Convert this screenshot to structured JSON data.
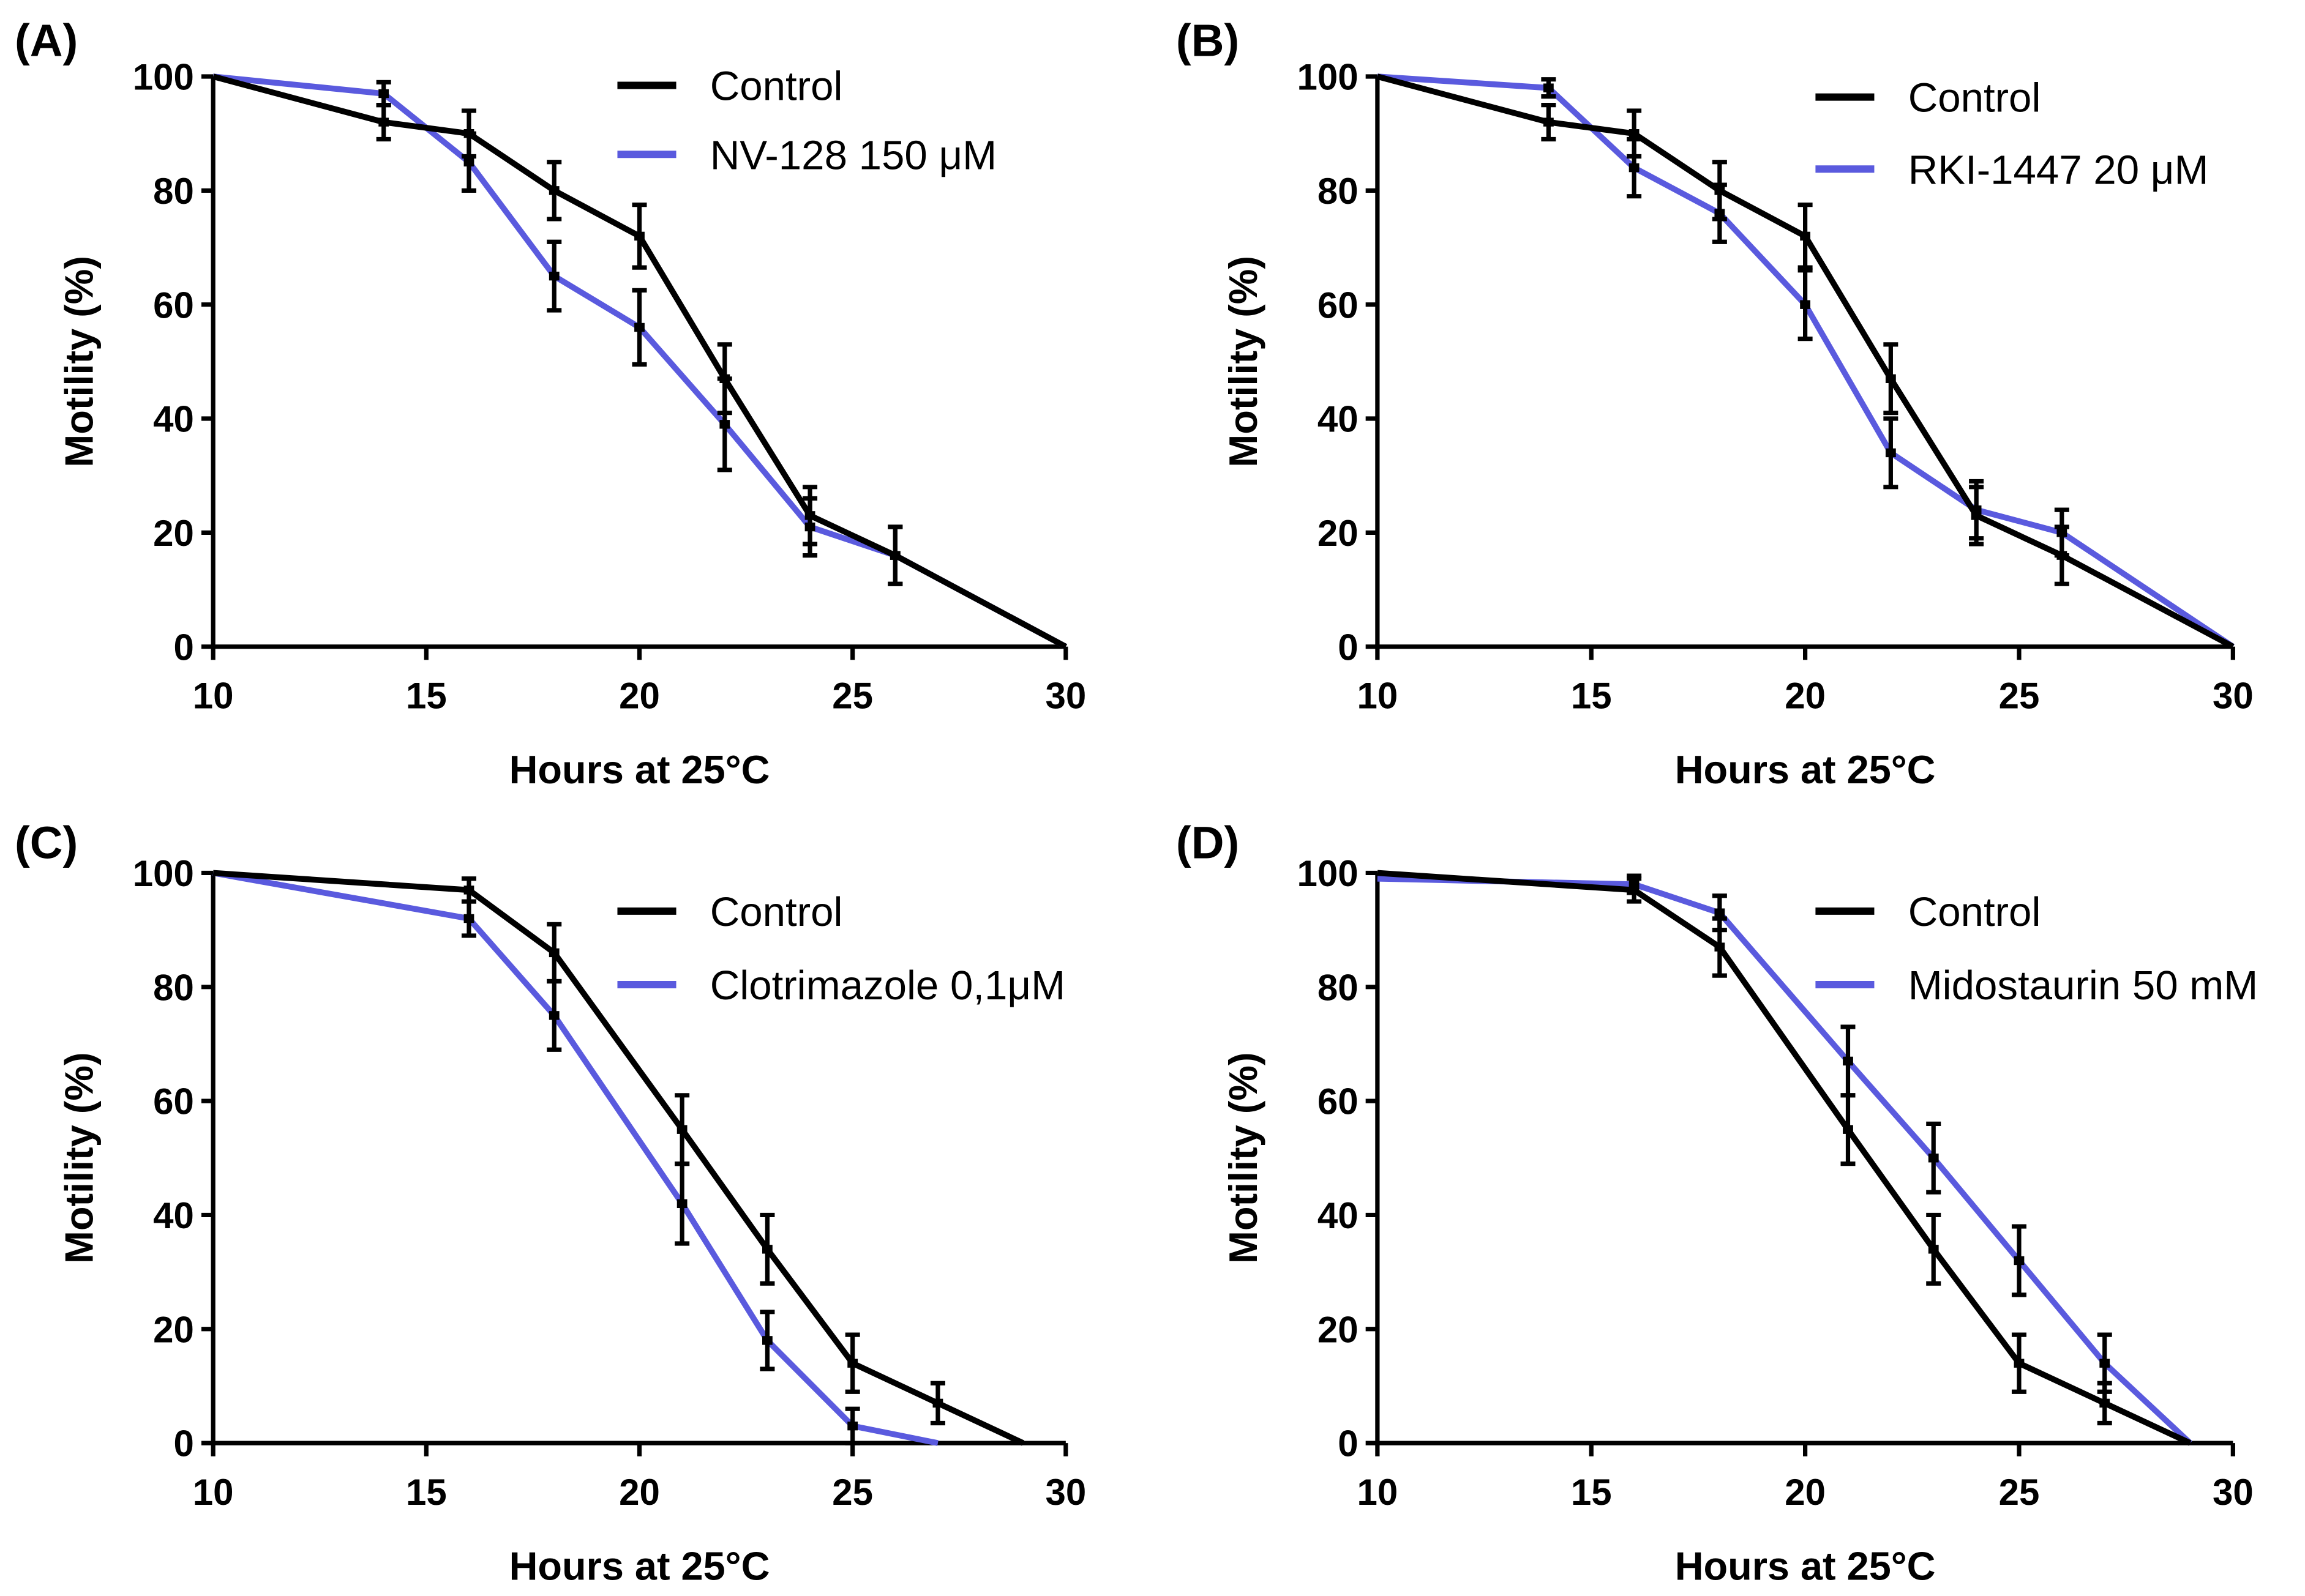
{
  "colors": {
    "control": "#000000",
    "treatment": "#5a5ade"
  },
  "chart_data": [
    {
      "panel": "(A)",
      "type": "line",
      "xlabel": "Hours at 25°C",
      "ylabel": "Motility (%)",
      "xlim": [
        10,
        30
      ],
      "ylim": [
        0,
        100
      ],
      "xticks": [
        "10",
        "15",
        "20",
        "25",
        "30"
      ],
      "yticks": [
        "0",
        "20",
        "40",
        "60",
        "80",
        "100"
      ],
      "legend_placement": "top-right",
      "series": [
        {
          "name": "Control",
          "x": [
            10,
            14,
            16,
            18,
            20,
            22,
            24,
            26,
            30
          ],
          "y": [
            100,
            92,
            90,
            80,
            72,
            47,
            23,
            16,
            0
          ],
          "err": [
            0,
            3,
            4,
            5,
            5.5,
            6,
            5,
            5,
            0
          ]
        },
        {
          "name": "NV-128 150 μM",
          "x": [
            10,
            14,
            16,
            18,
            20,
            22,
            24,
            26,
            30
          ],
          "y": [
            100,
            97,
            85,
            65,
            56,
            39,
            21,
            16,
            0
          ],
          "err": [
            0,
            2,
            5,
            6,
            6.5,
            8,
            5,
            5,
            0
          ]
        }
      ]
    },
    {
      "panel": "(B)",
      "type": "line",
      "xlabel": "Hours at 25°C",
      "ylabel": "Motility (%)",
      "xlim": [
        10,
        30
      ],
      "ylim": [
        0,
        100
      ],
      "xticks": [
        "10",
        "15",
        "20",
        "25",
        "30"
      ],
      "yticks": [
        "0",
        "20",
        "40",
        "60",
        "80",
        "100"
      ],
      "legend_placement": "top-right",
      "series": [
        {
          "name": "Control",
          "x": [
            10,
            14,
            16,
            18,
            20,
            22,
            24,
            26,
            30
          ],
          "y": [
            100,
            92,
            90,
            80,
            72,
            47,
            23,
            16,
            0
          ],
          "err": [
            0,
            3,
            4,
            5,
            5.5,
            6,
            5,
            5,
            0
          ]
        },
        {
          "name": "RKI-1447 20 μM",
          "x": [
            10,
            14,
            16,
            18,
            20,
            22,
            24,
            26,
            30
          ],
          "y": [
            100,
            98,
            84,
            76,
            60,
            34,
            24,
            20,
            0
          ],
          "err": [
            0,
            1.5,
            5,
            5,
            6,
            6,
            5,
            4,
            0
          ]
        }
      ]
    },
    {
      "panel": "(C)",
      "type": "line",
      "xlabel": "Hours at 25°C",
      "ylabel": "Motility (%)",
      "xlim": [
        10,
        30
      ],
      "ylim": [
        0,
        100
      ],
      "xticks": [
        "10",
        "15",
        "20",
        "25",
        "30"
      ],
      "yticks": [
        "0",
        "20",
        "40",
        "60",
        "80",
        "100"
      ],
      "legend_placement": "top-right",
      "series": [
        {
          "name": "Control",
          "x": [
            10,
            16,
            18,
            21,
            23,
            25,
            27,
            29
          ],
          "y": [
            100,
            97,
            86,
            55,
            34,
            14,
            7,
            0
          ],
          "err": [
            0,
            2,
            5,
            6,
            6,
            5,
            3.5,
            0
          ]
        },
        {
          "name": "Clotrimazole 0,1μM",
          "x": [
            10,
            16,
            18,
            21,
            23,
            25,
            27
          ],
          "y": [
            100,
            92,
            75,
            42,
            18,
            3,
            0
          ],
          "err": [
            0,
            3,
            6,
            7,
            5,
            3,
            0
          ]
        }
      ]
    },
    {
      "panel": "(D)",
      "type": "line",
      "xlabel": "Hours at 25°C",
      "ylabel": "Motility (%)",
      "xlim": [
        10,
        30
      ],
      "ylim": [
        0,
        100
      ],
      "xticks": [
        "10",
        "15",
        "20",
        "25",
        "30"
      ],
      "yticks": [
        "0",
        "20",
        "40",
        "60",
        "80",
        "100"
      ],
      "legend_placement": "top-right",
      "series": [
        {
          "name": "Control",
          "x": [
            10,
            16,
            18,
            21,
            23,
            25,
            27,
            29
          ],
          "y": [
            100,
            97,
            87,
            55,
            34,
            14,
            7,
            0
          ],
          "err": [
            0,
            2,
            5,
            6,
            6,
            5,
            3.5,
            0
          ]
        },
        {
          "name": "Midostaurin 50 mM",
          "x": [
            10,
            16,
            18,
            21,
            23,
            25,
            27,
            29
          ],
          "y": [
            99,
            98,
            93,
            67,
            50,
            32,
            14,
            0
          ],
          "err": [
            0,
            1.5,
            3,
            6,
            6,
            6,
            5,
            0
          ]
        }
      ]
    }
  ]
}
